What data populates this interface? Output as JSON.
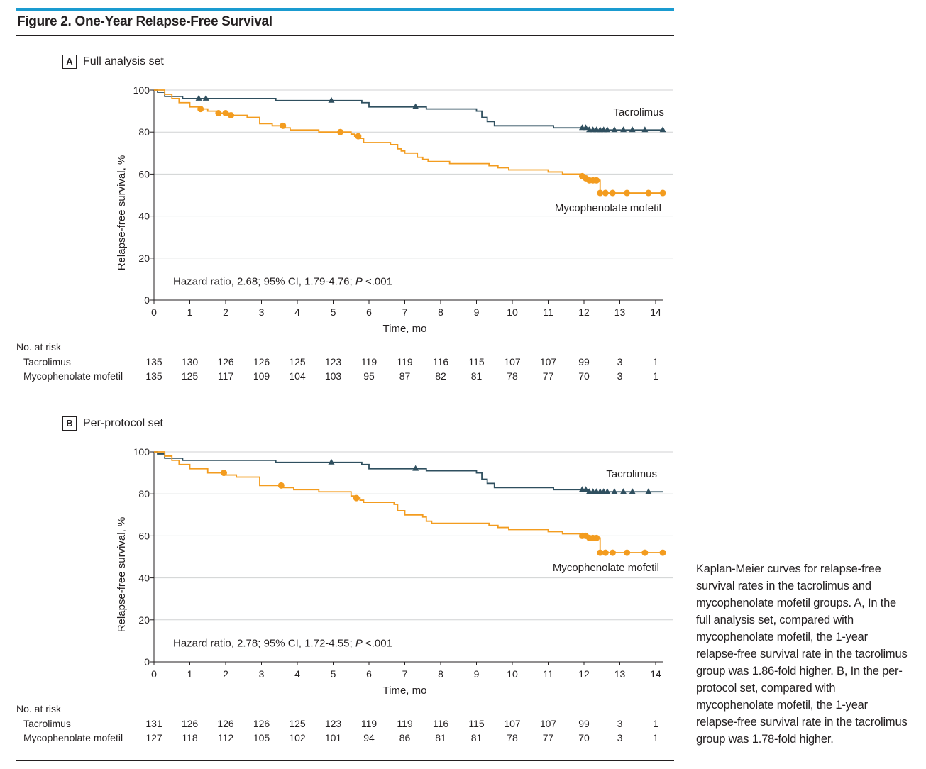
{
  "figure": {
    "title": "Figure 2. One-Year Relapse-Free Survival",
    "caption": "Kaplan-Meier curves for relapse-free survival rates in the tacrolimus and mycophenolate mofetil groups. A, In the full analysis set, compared with mycophenolate mofetil, the 1-year relapse-free survival rate in the tacrolimus group was 1.86-fold higher. B, In the per-protocol set, compared with mycophenolate mofetil, the 1-year relapse-free survival rate in the tacrolimus group was 1.78-fold higher."
  },
  "colors": {
    "tacrolimus": "#2f4f5f",
    "mycophenolate": "#f39c1f",
    "accent_bar": "#1a9bd0"
  },
  "chart_data": [
    {
      "type": "line",
      "panel_letter": "A",
      "panel_title": "Full analysis set",
      "xlabel": "Time, mo",
      "ylabel": "Relapse-free survival, %",
      "xlim": [
        0,
        14
      ],
      "ylim": [
        0,
        100
      ],
      "xticks": [
        0,
        1,
        2,
        3,
        4,
        5,
        6,
        7,
        8,
        9,
        10,
        11,
        12,
        13,
        14
      ],
      "yticks": [
        0,
        20,
        40,
        60,
        80,
        100
      ],
      "grid": "horizontal",
      "annotation_prefix": "Hazard ratio, 2.68; 95% CI, 1.79-4.76; ",
      "annotation_p_symbol": "P",
      "annotation_p_value": " <.001",
      "series": [
        {
          "name": "Tacrolimus",
          "color_key": "tacrolimus",
          "marker": "triangle",
          "steps": [
            [
              0,
              100
            ],
            [
              0.1,
              99
            ],
            [
              0.3,
              97
            ],
            [
              0.8,
              96
            ],
            [
              3.4,
              95
            ],
            [
              5.8,
              94
            ],
            [
              6,
              92
            ],
            [
              7.5,
              92
            ],
            [
              7.6,
              91
            ],
            [
              9,
              90
            ],
            [
              9.15,
              87
            ],
            [
              9.3,
              85
            ],
            [
              9.5,
              83
            ],
            [
              11.15,
              82
            ],
            [
              12.15,
              81
            ],
            [
              14.2,
              81
            ]
          ],
          "censor_x": [
            1.25,
            1.45,
            4.95,
            7.3,
            11.95,
            12.05,
            12.15,
            12.25,
            12.35,
            12.45,
            12.55,
            12.65,
            12.85,
            13.1,
            13.35,
            13.7,
            14.2
          ]
        },
        {
          "name": "Mycophenolate mofetil",
          "color_key": "mycophenolate",
          "marker": "circle",
          "steps": [
            [
              0,
              100
            ],
            [
              0.3,
              98
            ],
            [
              0.5,
              96
            ],
            [
              0.7,
              94
            ],
            [
              1.0,
              92
            ],
            [
              1.3,
              91
            ],
            [
              1.5,
              90
            ],
            [
              1.8,
              89
            ],
            [
              2.1,
              88
            ],
            [
              2.6,
              87
            ],
            [
              2.95,
              84
            ],
            [
              3.3,
              83
            ],
            [
              3.65,
              82
            ],
            [
              3.8,
              81
            ],
            [
              4.6,
              80
            ],
            [
              5.5,
              79
            ],
            [
              5.6,
              78
            ],
            [
              5.75,
              77
            ],
            [
              5.85,
              75
            ],
            [
              6.6,
              74
            ],
            [
              6.8,
              72
            ],
            [
              6.9,
              71
            ],
            [
              7.0,
              70
            ],
            [
              7.35,
              68
            ],
            [
              7.5,
              67
            ],
            [
              7.65,
              66
            ],
            [
              8.25,
              65
            ],
            [
              9.35,
              64
            ],
            [
              9.6,
              63
            ],
            [
              9.9,
              62
            ],
            [
              11.0,
              61
            ],
            [
              11.4,
              60
            ],
            [
              11.95,
              59
            ],
            [
              12.05,
              58
            ],
            [
              12.15,
              57
            ],
            [
              12.45,
              57
            ],
            [
              12.45,
              51
            ],
            [
              14.2,
              51
            ]
          ],
          "censor_x": [
            1.3,
            1.8,
            2.0,
            2.15,
            3.6,
            5.2,
            5.7,
            11.95,
            12.05,
            12.15,
            12.25,
            12.35,
            12.45,
            12.6,
            12.8,
            13.2,
            13.8,
            14.2
          ]
        }
      ],
      "label_positions": {
        "tacrolimus": "upper-right",
        "mycophenolate": "below-curve-right"
      },
      "risk_table": {
        "title": "No. at risk",
        "rows": [
          {
            "label": "Tacrolimus",
            "values": [
              "135",
              "130",
              "126",
              "126",
              "125",
              "123",
              "119",
              "119",
              "116",
              "115",
              "107",
              "107",
              "99",
              "3",
              "1"
            ]
          },
          {
            "label": "Mycophenolate mofetil",
            "values": [
              "135",
              "125",
              "117",
              "109",
              "104",
              "103",
              "95",
              "87",
              "82",
              "81",
              "78",
              "77",
              "70",
              "3",
              "1"
            ]
          }
        ]
      }
    },
    {
      "type": "line",
      "panel_letter": "B",
      "panel_title": "Per-protocol set",
      "xlabel": "Time, mo",
      "ylabel": "Relapse-free survival, %",
      "xlim": [
        0,
        14
      ],
      "ylim": [
        0,
        100
      ],
      "xticks": [
        0,
        1,
        2,
        3,
        4,
        5,
        6,
        7,
        8,
        9,
        10,
        11,
        12,
        13,
        14
      ],
      "yticks": [
        0,
        20,
        40,
        60,
        80,
        100
      ],
      "grid": "horizontal",
      "annotation_prefix": "Hazard ratio, 2.78; 95% CI, 1.72-4.55; ",
      "annotation_p_symbol": "P",
      "annotation_p_value": " <.001",
      "series": [
        {
          "name": "Tacrolimus",
          "color_key": "tacrolimus",
          "marker": "triangle",
          "steps": [
            [
              0,
              100
            ],
            [
              0.1,
              99
            ],
            [
              0.3,
              97
            ],
            [
              0.8,
              96
            ],
            [
              3.4,
              95
            ],
            [
              5.8,
              94
            ],
            [
              6,
              92
            ],
            [
              7.5,
              92
            ],
            [
              7.6,
              91
            ],
            [
              9,
              90
            ],
            [
              9.15,
              87
            ],
            [
              9.3,
              85
            ],
            [
              9.5,
              83
            ],
            [
              11.15,
              82
            ],
            [
              12.15,
              81
            ],
            [
              14.2,
              81
            ]
          ],
          "censor_x": [
            4.95,
            7.3,
            11.95,
            12.05,
            12.15,
            12.25,
            12.35,
            12.45,
            12.55,
            12.65,
            12.85,
            13.1,
            13.35,
            13.8
          ]
        },
        {
          "name": "Mycophenolate mofetil",
          "color_key": "mycophenolate",
          "marker": "circle",
          "steps": [
            [
              0,
              100
            ],
            [
              0.3,
              98
            ],
            [
              0.5,
              96
            ],
            [
              0.7,
              94
            ],
            [
              1.0,
              92
            ],
            [
              1.5,
              90
            ],
            [
              2.0,
              89
            ],
            [
              2.3,
              88
            ],
            [
              2.95,
              84
            ],
            [
              3.6,
              83
            ],
            [
              3.9,
              82
            ],
            [
              4.6,
              81
            ],
            [
              5.5,
              79
            ],
            [
              5.6,
              78
            ],
            [
              5.75,
              77
            ],
            [
              5.85,
              76
            ],
            [
              6.7,
              75
            ],
            [
              6.8,
              72
            ],
            [
              7.0,
              70
            ],
            [
              7.5,
              69
            ],
            [
              7.6,
              67
            ],
            [
              7.75,
              66
            ],
            [
              9.35,
              65
            ],
            [
              9.6,
              64
            ],
            [
              9.9,
              63
            ],
            [
              11.0,
              62
            ],
            [
              11.4,
              61
            ],
            [
              11.9,
              60
            ],
            [
              12.15,
              59
            ],
            [
              12.45,
              58
            ],
            [
              12.45,
              52
            ],
            [
              14.2,
              52
            ]
          ],
          "censor_x": [
            1.95,
            3.55,
            5.65,
            11.95,
            12.05,
            12.15,
            12.25,
            12.35,
            12.45,
            12.6,
            12.8,
            13.2,
            13.7,
            14.2
          ]
        }
      ],
      "label_positions": {
        "tacrolimus": "upper-right",
        "mycophenolate": "below-curve-right"
      },
      "risk_table": {
        "title": "No. at risk",
        "rows": [
          {
            "label": "Tacrolimus",
            "values": [
              "131",
              "126",
              "126",
              "126",
              "125",
              "123",
              "119",
              "119",
              "116",
              "115",
              "107",
              "107",
              "99",
              "3",
              "1"
            ]
          },
          {
            "label": "Mycophenolate mofetil",
            "values": [
              "127",
              "118",
              "112",
              "105",
              "102",
              "101",
              "94",
              "86",
              "81",
              "81",
              "78",
              "77",
              "70",
              "3",
              "1"
            ]
          }
        ]
      }
    }
  ]
}
